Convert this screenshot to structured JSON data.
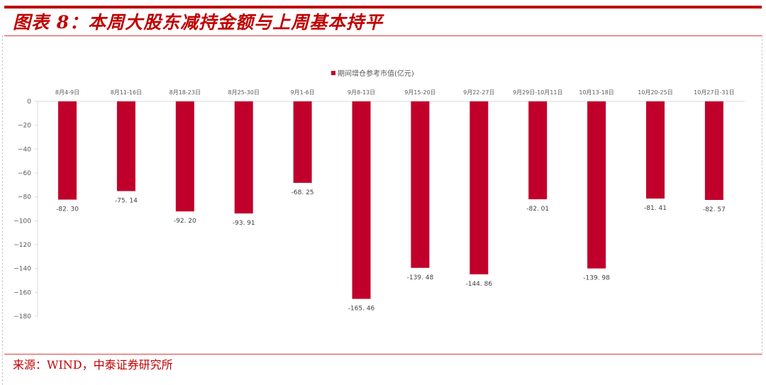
{
  "header": {
    "title": "图表 8：本周大股东减持金额与上周基本持平"
  },
  "footer": {
    "source": "来源：WIND，中泰证券研究所"
  },
  "legend": {
    "label": "期间增仓参考市值(亿元)",
    "color": "#c0002b"
  },
  "colors": {
    "accent": "#c00000",
    "bar": "#c0002b"
  },
  "chart_data": {
    "type": "bar",
    "title": "",
    "xlabel": "",
    "ylabel": "",
    "ylim": [
      -180,
      0
    ],
    "yticks": [
      0,
      -20,
      -40,
      -60,
      -80,
      -100,
      -120,
      -140,
      -160,
      -180
    ],
    "grid": false,
    "legend_position": "top",
    "categories": [
      "8月4-9日",
      "8月11-16日",
      "8月18-23日",
      "8月25-30日",
      "9月1-6日",
      "9月8-13日",
      "9月15-20日",
      "9月22-27日",
      "9月29日-10月11日",
      "10月13-18日",
      "10月20-25日",
      "10月27日-31日"
    ],
    "series": [
      {
        "name": "期间增仓参考市值(亿元)",
        "values": [
          -82.3,
          -75.14,
          -92.2,
          -93.91,
          -68.25,
          -165.46,
          -139.48,
          -144.86,
          -82.01,
          -139.98,
          -81.41,
          -82.57
        ],
        "labels": [
          "-82.30",
          "-75.14",
          "-92.20",
          "-93.91",
          "-68.25",
          "-165.46",
          "-139.48",
          "-144.86",
          "-82.01",
          "-139.98",
          "-81.41",
          "-82.57"
        ]
      }
    ]
  }
}
